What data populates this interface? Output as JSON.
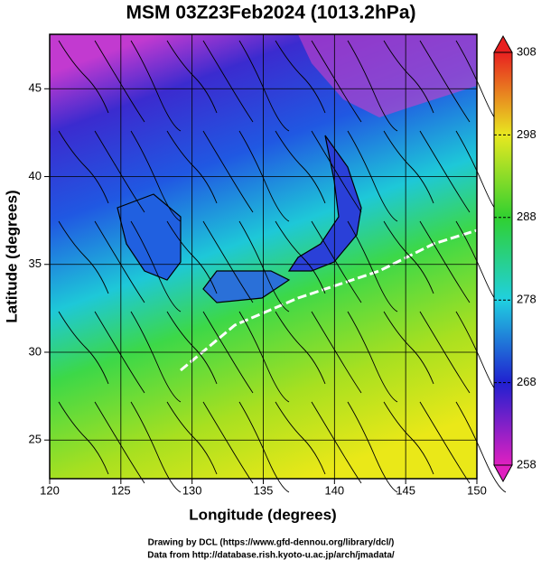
{
  "title": "MSM 03Z23Feb2024 (1013.2hPa)",
  "map": {
    "xlabel": "Longitude (degrees)",
    "ylabel": "Latitude  (degrees)",
    "xlim": [
      120,
      150
    ],
    "ylim": [
      22.8,
      48.1
    ],
    "xticks": [
      120,
      125,
      130,
      135,
      140,
      145,
      150
    ],
    "yticks": [
      25,
      30,
      35,
      40,
      45
    ],
    "grid": true
  },
  "colorbar": {
    "lim": [
      258,
      308
    ],
    "ticks": [
      258,
      268,
      278,
      288,
      298,
      308
    ]
  },
  "credits": [
    "Drawing by DCL (https://www.gfd-dennou.org/library/dcl/)",
    "Data from http://database.rish.kyoto-u.ac.jp/arch/jmadata/"
  ]
}
